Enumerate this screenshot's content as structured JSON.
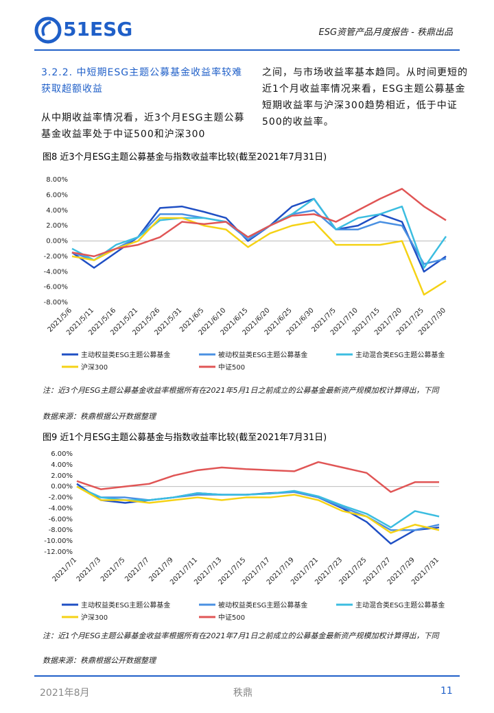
{
  "header": {
    "logo": "51ESG",
    "report": "ESG资管产品月度报告 - 秩鼎出品"
  },
  "section": {
    "title": "3.2.2. 中短期ESG主题公募基金收益率较难获取超额收益",
    "left": "从中期收益率情况看，近3个月ESG主题公募基金收益率处于中证500和沪深300",
    "right": "之间，与市场收益率基本趋同。从时间更短的近1个月收益率情况来看，ESG主题公募基金短期收益率与沪深300趋势相近，低于中证500的收益率。"
  },
  "notes": [
    {
      "note": "注：近3个月ESG主题公募基金收益率根据所有在2021年5月1日之前成立的公募基金最新资产规模加权计算得出，下同",
      "source": "数据来源：秩鼎根据公开数据整理"
    },
    {
      "note": "注：近1个月ESG主题公募基金收益率根据所有在2021年7月1日之前成立的公募基金最新资产规模加权计算得出，下同",
      "source": "数据来源：秩鼎根据公开数据整理"
    }
  ],
  "footer": {
    "date": "2021年8月",
    "company": "秩鼎",
    "page": "11"
  },
  "chart_data": [
    {
      "type": "line",
      "title": "图8  近3个月ESG主题公募基金与指数收益率比较(截至2021年7月31日)",
      "categories": [
        "2021/5/6",
        "2021/5/11",
        "2021/5/16",
        "2021/5/21",
        "2021/5/26",
        "2021/5/31",
        "2021/6/5",
        "2021/6/10",
        "2021/6/15",
        "2021/6/20",
        "2021/6/25",
        "2021/6/30",
        "2021/7/5",
        "2021/7/10",
        "2021/7/15",
        "2021/7/20",
        "2021/7/25",
        "2021/7/30"
      ],
      "ylim": [
        -8,
        8
      ],
      "yticks": [
        {
          "value": -8,
          "label": "-8.00%"
        },
        {
          "value": -6,
          "label": "-6.00%"
        },
        {
          "value": -4,
          "label": "-4.00%"
        },
        {
          "value": -2,
          "label": "-2.00%"
        },
        {
          "value": 0,
          "label": "0.00%"
        },
        {
          "value": 2,
          "label": "2.00%"
        },
        {
          "value": 4,
          "label": "4.00%"
        },
        {
          "value": 6,
          "label": "6.00%"
        },
        {
          "value": 8,
          "label": "8.00%"
        }
      ],
      "series": [
        {
          "name": "主动权益类ESG主题公募基金",
          "color": "#1f4fc4",
          "values": [
            -1.5,
            -3.5,
            -1.5,
            0.5,
            4.3,
            4.5,
            3.8,
            3,
            0,
            2,
            4.5,
            5.5,
            1.5,
            2,
            3.5,
            2.5,
            -4,
            -2
          ]
        },
        {
          "name": "被动权益类ESG主题公募基金",
          "color": "#4a90e2",
          "values": [
            -1.5,
            -2.5,
            -1,
            0.5,
            3.5,
            3.5,
            3,
            2.5,
            0.2,
            2,
            3.5,
            4,
            1.5,
            1.5,
            2.5,
            2,
            -3,
            -2.3
          ]
        },
        {
          "name": "主动混合类ESG主题公募基金",
          "color": "#3bbde0",
          "values": [
            -1,
            -2.5,
            -0.5,
            0.5,
            2.7,
            3,
            3,
            2.5,
            0.5,
            2,
            3.5,
            5.5,
            1.5,
            3,
            3.5,
            4.5,
            -3.5,
            0.6
          ]
        },
        {
          "name": "沪深300",
          "color": "#f5d215",
          "values": [
            -2,
            -2.5,
            -1,
            0,
            3,
            3,
            2,
            1.5,
            -0.8,
            1,
            2,
            2.5,
            -0.5,
            -0.5,
            -0.5,
            0,
            -7,
            -5.2
          ]
        },
        {
          "name": "中证500",
          "color": "#e05555",
          "values": [
            -1.5,
            -2,
            -1,
            -0.5,
            0.5,
            2.5,
            2.2,
            2.5,
            0.5,
            2,
            3.3,
            3.5,
            2.5,
            4,
            5.5,
            6.8,
            4.5,
            2.7
          ]
        }
      ]
    },
    {
      "type": "line",
      "title": "图9  近1个月ESG主题公募基金与指数收益率比较(截至2021年7月31日)",
      "categories": [
        "2021/7/1",
        "2021/7/3",
        "2021/7/5",
        "2021/7/7",
        "2021/7/9",
        "2021/7/11",
        "2021/7/13",
        "2021/7/15",
        "2021/7/17",
        "2021/7/19",
        "2021/7/21",
        "2021/7/23",
        "2021/7/25",
        "2021/7/27",
        "2021/7/29",
        "2021/7/31"
      ],
      "ylim": [
        -12,
        6
      ],
      "yticks": [
        {
          "value": -12,
          "label": "-12.00%"
        },
        {
          "value": -10,
          "label": "-10.00%"
        },
        {
          "value": -8,
          "label": "-8.00%"
        },
        {
          "value": -6,
          "label": "-6.00%"
        },
        {
          "value": -4,
          "label": "-4.00%"
        },
        {
          "value": -2,
          "label": "-2.00%"
        },
        {
          "value": 0,
          "label": "0.00%"
        },
        {
          "value": 2,
          "label": "2.00%"
        },
        {
          "value": 4,
          "label": "4.00%"
        },
        {
          "value": 6,
          "label": "6.00%"
        }
      ],
      "series": [
        {
          "name": "主动权益类ESG主题公募基金",
          "color": "#1f4fc4",
          "values": [
            0.5,
            -2.5,
            -3,
            -2.5,
            -2,
            -1.2,
            -1.5,
            -1.5,
            -1.2,
            -1,
            -2,
            -4,
            -6.5,
            -10.5,
            -8,
            -7.5
          ]
        },
        {
          "name": "被动权益类ESG主题公募基金",
          "color": "#4a90e2",
          "values": [
            0,
            -2,
            -2,
            -2.5,
            -2,
            -1.5,
            -1.5,
            -1.5,
            -1.3,
            -1,
            -2,
            -3.8,
            -5.5,
            -8,
            -8,
            -7
          ]
        },
        {
          "name": "主动混合类ESG主题公募基金",
          "color": "#3bbde0",
          "values": [
            0,
            -2,
            -2.5,
            -2.5,
            -2,
            -1.2,
            -1.5,
            -1.5,
            -1.3,
            -0.8,
            -1.8,
            -3.5,
            -5,
            -7.5,
            -4.5,
            -5.5
          ]
        },
        {
          "name": "沪深300",
          "color": "#f5d215",
          "values": [
            0,
            -2.5,
            -2.5,
            -3,
            -2.5,
            -2,
            -2.5,
            -2,
            -2,
            -1.5,
            -2.5,
            -4.5,
            -5.5,
            -8.5,
            -7,
            -8
          ]
        },
        {
          "name": "中证500",
          "color": "#e05555",
          "values": [
            1,
            -0.5,
            0,
            0.5,
            2,
            3,
            3.5,
            3.2,
            3,
            2.8,
            4.5,
            3.5,
            2.5,
            -1,
            0.8,
            0.8
          ]
        }
      ]
    }
  ]
}
